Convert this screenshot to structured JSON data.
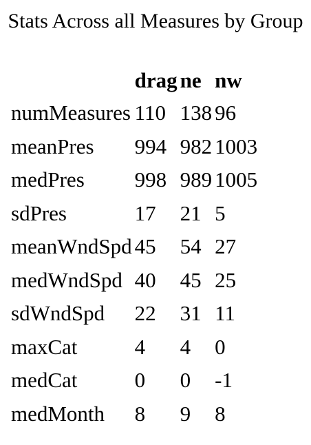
{
  "caption": "Stats Across all Measures by Group",
  "table": {
    "corner": "",
    "headers": [
      "drag",
      "ne",
      "nw"
    ],
    "rows": [
      {
        "label": "numMeasures",
        "values": [
          "110",
          "138",
          "96"
        ]
      },
      {
        "label": "meanPres",
        "values": [
          "994",
          "982",
          "1003"
        ]
      },
      {
        "label": "medPres",
        "values": [
          "998",
          "989",
          "1005"
        ]
      },
      {
        "label": "sdPres",
        "values": [
          "17",
          "21",
          "5"
        ]
      },
      {
        "label": "meanWndSpd",
        "values": [
          "45",
          "54",
          "27"
        ]
      },
      {
        "label": "medWndSpd",
        "values": [
          "40",
          "45",
          "25"
        ]
      },
      {
        "label": "sdWndSpd",
        "values": [
          "22",
          "31",
          "11"
        ]
      },
      {
        "label": "maxCat",
        "values": [
          "4",
          "4",
          "0"
        ]
      },
      {
        "label": "medCat",
        "values": [
          "0",
          "0",
          "-1"
        ]
      },
      {
        "label": "medMonth",
        "values": [
          "8",
          "9",
          "8"
        ]
      }
    ]
  }
}
